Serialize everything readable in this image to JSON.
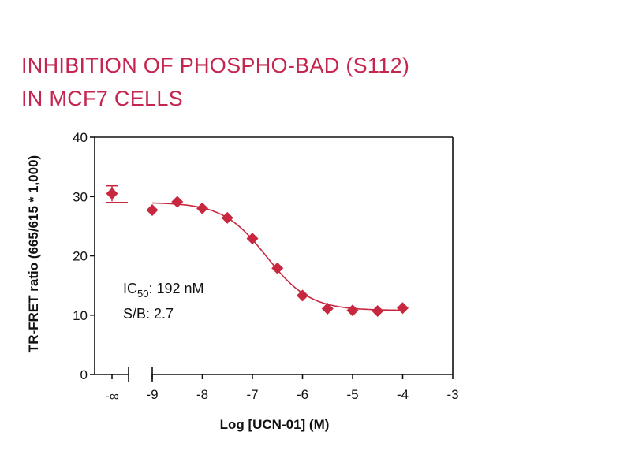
{
  "title_lines": [
    "INHIBITION OF PHOSPHO-BAD (S112)",
    "IN MCF7 CELLS"
  ],
  "colors": {
    "title": "#c4264f",
    "series": "#c8283f",
    "axis": "#111111"
  },
  "chart_data": {
    "type": "scatter",
    "title": "INHIBITION OF PHOSPHO-BAD (S112) IN MCF7 CELLS",
    "xlabel": "Log [UCN-01] (M)",
    "ylabel": "TR-FRET ratio (665/615 * 1,000)",
    "xlim": [
      -9.5,
      -3
    ],
    "ylim": [
      0,
      40
    ],
    "x_ticks": [
      -9,
      -8,
      -7,
      -6,
      -5,
      -4,
      -3
    ],
    "x_tick_labels": [
      "-9",
      "-8",
      "-7",
      "-6",
      "-5",
      "-4",
      "-3"
    ],
    "y_ticks": [
      0,
      10,
      20,
      30,
      40
    ],
    "y_tick_labels": [
      "0",
      "10",
      "20",
      "30",
      "40"
    ],
    "x_break_label": "-∞",
    "marker": "diamond",
    "control_point": {
      "x_label": "-∞",
      "y": 30.5,
      "y_err": 1.3
    },
    "x": [
      -9,
      -8.5,
      -8,
      -7.5,
      -7,
      -6.5,
      -6,
      -5.5,
      -5,
      -4.5,
      -4
    ],
    "y": [
      27.7,
      29.1,
      28.0,
      26.4,
      22.9,
      17.9,
      13.3,
      11.1,
      10.8,
      10.7,
      11.2
    ],
    "fit": {
      "bottom": 10.8,
      "top": 29.0,
      "log_ic50": -6.72,
      "hill_slope": 1.0,
      "x_range": [
        -9,
        -4
      ]
    },
    "annotations": {
      "ic50_prefix": "IC",
      "ic50_sub": "50",
      "ic50_value": ": 192 nM",
      "sb": "S/B: 2.7"
    },
    "grid": false,
    "legend": "none"
  }
}
